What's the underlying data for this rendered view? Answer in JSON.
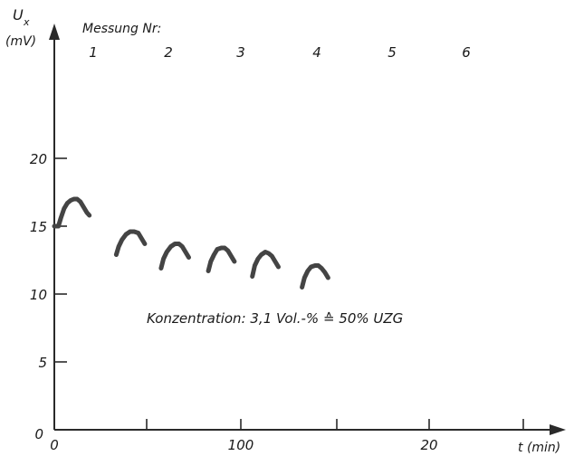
{
  "chart_data": {
    "type": "line",
    "ylabel_symbol": "U",
    "ylabel_subscript": "x",
    "yunit": "(mV)",
    "xlabel": "t (min)",
    "xtick_labels": [
      "0",
      "100",
      "20"
    ],
    "ytick_labels": [
      "0",
      "5",
      "10",
      "15",
      "20"
    ],
    "ylim": [
      0,
      20
    ],
    "xlim": [
      0,
      28
    ],
    "measurement_header": "Messung Nr:",
    "measurements": [
      {
        "label": "1",
        "x": [
          0.0,
          0.2,
          0.5,
          0.8,
          1.2,
          1.6,
          2.0,
          2.4,
          2.8,
          3.2,
          3.6,
          4.0,
          4.3
        ],
        "y": [
          15.0,
          15.0,
          15.0,
          15.6,
          16.3,
          16.7,
          16.9,
          17.0,
          17.0,
          16.8,
          16.4,
          16.0,
          15.8
        ]
      },
      {
        "label": "2",
        "x": [
          7.6,
          7.9,
          8.3,
          8.8,
          9.3,
          9.8,
          10.3,
          10.7,
          11.1
        ],
        "y": [
          12.9,
          13.5,
          14.0,
          14.4,
          14.6,
          14.6,
          14.5,
          14.1,
          13.7
        ]
      },
      {
        "label": "3",
        "x": [
          13.1,
          13.4,
          13.8,
          14.3,
          14.8,
          15.3,
          15.7,
          16.1,
          16.5
        ],
        "y": [
          11.9,
          12.6,
          13.1,
          13.5,
          13.7,
          13.7,
          13.5,
          13.1,
          12.7
        ]
      },
      {
        "label": "4",
        "x": [
          18.9,
          19.2,
          19.6,
          20.0,
          20.5,
          20.9,
          21.3,
          21.7,
          22.1
        ],
        "y": [
          11.7,
          12.4,
          12.9,
          13.3,
          13.4,
          13.4,
          13.2,
          12.8,
          12.4
        ]
      },
      {
        "label": "5",
        "x": [
          24.3,
          24.6,
          25.0,
          25.4,
          25.9,
          26.3,
          26.7,
          27.1,
          27.5
        ],
        "y": [
          11.3,
          12.1,
          12.6,
          12.9,
          13.1,
          13.0,
          12.8,
          12.4,
          12.0
        ]
      },
      {
        "label": "6",
        "x": [
          30.4,
          30.7,
          31.1,
          31.5,
          32.0,
          32.4,
          32.8,
          33.2,
          33.6
        ],
        "y": [
          10.5,
          11.2,
          11.7,
          12.0,
          12.1,
          12.1,
          11.9,
          11.6,
          11.2
        ]
      }
    ],
    "annotation": "Konzentration: 3,1 Vol.-% ≙ 50% UZG",
    "grid": false,
    "colors": {
      "curve": "#444444",
      "axis": "#2a2a2a",
      "text": "#1a1a1a"
    }
  }
}
